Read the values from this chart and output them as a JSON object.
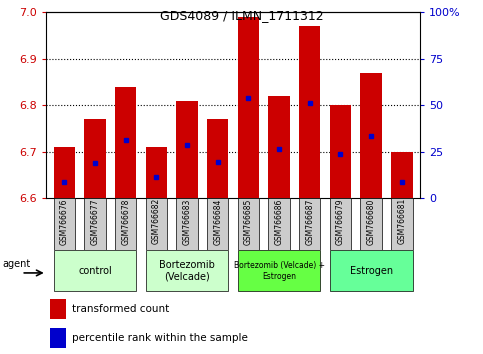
{
  "title": "GDS4089 / ILMN_1711312",
  "samples": [
    "GSM766676",
    "GSM766677",
    "GSM766678",
    "GSM766682",
    "GSM766683",
    "GSM766684",
    "GSM766685",
    "GSM766686",
    "GSM766687",
    "GSM766679",
    "GSM766680",
    "GSM766681"
  ],
  "bar_values": [
    6.71,
    6.77,
    6.84,
    6.71,
    6.81,
    6.77,
    6.99,
    6.82,
    6.97,
    6.8,
    6.87,
    6.7
  ],
  "blue_positions": [
    6.635,
    6.675,
    6.725,
    6.645,
    6.715,
    6.678,
    6.815,
    6.705,
    6.805,
    6.695,
    6.735,
    6.635
  ],
  "bar_bottom": 6.6,
  "ylim_left": [
    6.6,
    7.0
  ],
  "ylim_right": [
    0,
    100
  ],
  "yticks_left": [
    6.6,
    6.7,
    6.8,
    6.9,
    7.0
  ],
  "yticks_right": [
    0,
    25,
    50,
    75,
    100
  ],
  "ytick_labels_right": [
    "0",
    "25",
    "50",
    "75",
    "100%"
  ],
  "grid_lines": [
    6.7,
    6.8,
    6.9
  ],
  "bar_color": "#cc0000",
  "blue_color": "#0000cc",
  "bar_width": 0.7,
  "group_ranges": [
    [
      0,
      2,
      "control",
      "#ccffcc"
    ],
    [
      3,
      5,
      "Bortezomib\n(Velcade)",
      "#ccffcc"
    ],
    [
      6,
      8,
      "Bortezomib (Velcade) +\nEstrogen",
      "#66ff44"
    ],
    [
      9,
      11,
      "Estrogen",
      "#66ff99"
    ]
  ],
  "agent_label": "agent",
  "legend_red": "transformed count",
  "legend_blue": "percentile rank within the sample",
  "tick_color_left": "#cc0000",
  "tick_color_right": "#0000cc",
  "sample_box_color": "#cccccc",
  "background_color": "#ffffff"
}
